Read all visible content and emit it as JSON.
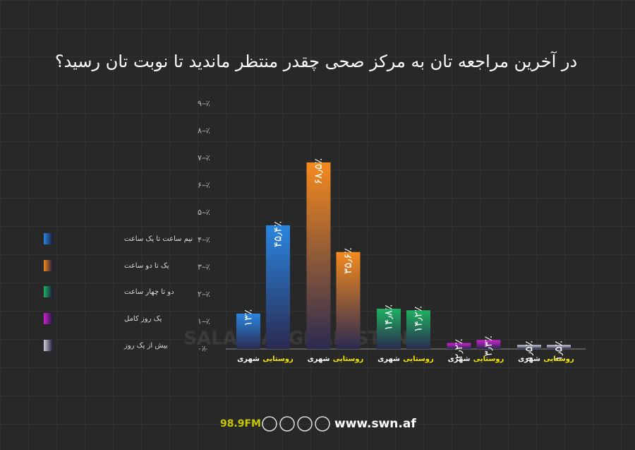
{
  "chart_data": {
    "type": "bar",
    "title": "در آخرین مراجعه تان به مرکز صحی چقدر منتظر ماندید تا نوبت تان رسید؟",
    "categories": [
      "شهری",
      "روستایی"
    ],
    "category_colors": [
      "#ffffff",
      "#f5e600"
    ],
    "series": [
      {
        "name": "نیم ساعت تا یک ساعت",
        "color": "#2a86e0",
        "values": [
          13,
          45.4
        ],
        "value_labels": [
          "۱۳٪",
          "۴۵٫۴٪"
        ]
      },
      {
        "name": "یک تا دو ساعت",
        "color": "#f58a1e",
        "values": [
          68.5,
          35.6
        ],
        "value_labels": [
          "۶۸٫۵٪",
          "۳۵٫۶٪"
        ]
      },
      {
        "name": "دو تا چهار ساعت",
        "color": "#1fb060",
        "values": [
          14.8,
          14.2
        ],
        "value_labels": [
          "۱۴٫۸٪",
          "۱۴٫۲٪"
        ]
      },
      {
        "name": "یک روز کامل",
        "color": "#d020d0",
        "values": [
          2.2,
          3.3
        ],
        "value_labels": [
          "۲٫۲٪",
          "۳٫۳٪"
        ]
      },
      {
        "name": "بیش از یک روز",
        "color": "#d0d0d8",
        "values": [
          1.5,
          1.5
        ],
        "value_labels": [
          "۱٫۵٪",
          "۱٫۵٪"
        ]
      }
    ],
    "ylim": [
      0,
      90
    ],
    "yticks": [
      {
        "value": 0,
        "label": "۰٪"
      },
      {
        "value": 10,
        "label": "۱۰٪"
      },
      {
        "value": 20,
        "label": "۲۰٪"
      },
      {
        "value": 30,
        "label": "۳۰٪"
      },
      {
        "value": 40,
        "label": "۴۰٪"
      },
      {
        "value": 50,
        "label": "۵۰٪"
      },
      {
        "value": 60,
        "label": "۶۰٪"
      },
      {
        "value": 70,
        "label": "۷۰٪"
      },
      {
        "value": 80,
        "label": "۸۰٪"
      },
      {
        "value": 90,
        "label": "۹۰٪"
      }
    ],
    "legend": "left",
    "watermark": "SALAM AFGHANISTAN",
    "footer": {
      "radio": "98.9FM",
      "website": "www.swn.af"
    }
  }
}
